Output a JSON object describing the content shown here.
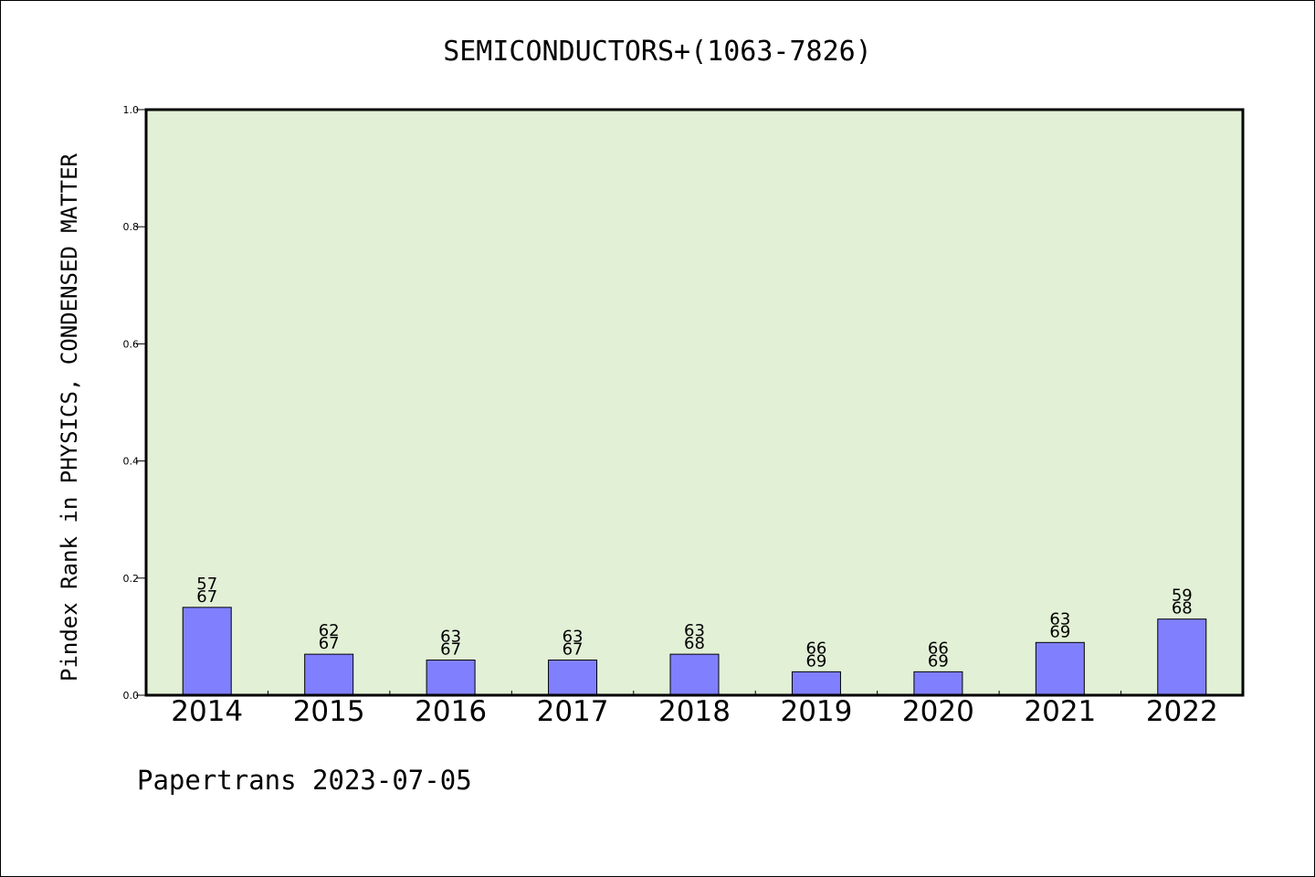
{
  "chart_data": {
    "type": "bar",
    "title": "SEMICONDUCTORS+(1063-7826)",
    "ylabel": "Pindex Rank in PHYSICS, CONDENSED MATTER",
    "xlabel": "",
    "ylim": [
      0,
      1.0
    ],
    "yticks": [
      "0.0",
      "0.2",
      "0.4",
      "0.6",
      "0.8",
      "1.0"
    ],
    "categories": [
      "2014",
      "2015",
      "2016",
      "2017",
      "2018",
      "2019",
      "2020",
      "2021",
      "2022"
    ],
    "values": [
      0.15,
      0.07,
      0.06,
      0.06,
      0.07,
      0.04,
      0.04,
      0.09,
      0.13
    ],
    "rank_labels": [
      "57",
      "62",
      "63",
      "63",
      "63",
      "66",
      "66",
      "63",
      "59"
    ],
    "total_labels": [
      "67",
      "67",
      "67",
      "67",
      "68",
      "69",
      "69",
      "69",
      "68"
    ],
    "plot_background": "#e2f0d6",
    "bar_color": "#8080ff",
    "grid": false,
    "legend": "none"
  },
  "footer": {
    "text": "Papertrans 2023-07-05"
  }
}
